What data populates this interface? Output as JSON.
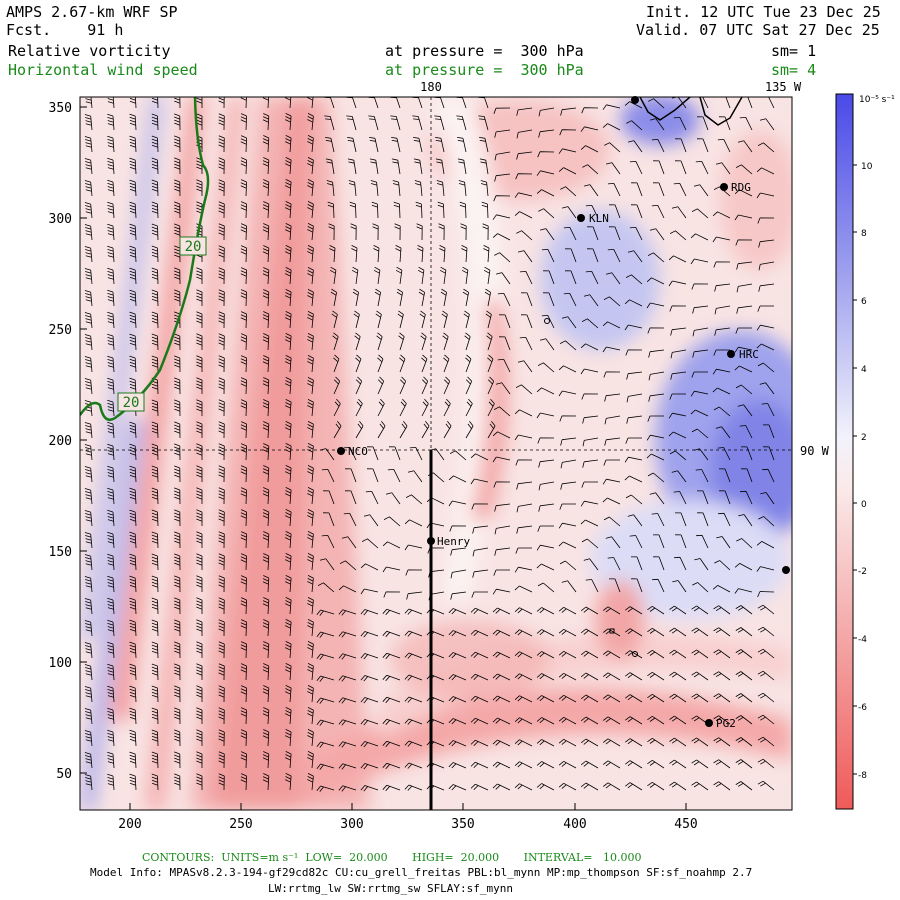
{
  "header": {
    "model": "AMPS 2.67-km WRF SP",
    "fcst": "Fcst.    91 h",
    "init": "Init. 12 UTC Tue 23 Dec 25",
    "valid": "Valid. 07 UTC Sat 27 Dec 25",
    "field1": "Relative vorticity",
    "field1_level": "at pressure =  300 hPa",
    "field1_sm": "sm= 1",
    "field2": "Horizontal wind speed",
    "field2_level": "at pressure =  300 hPa",
    "field2_sm": "sm= 4"
  },
  "colors": {
    "positive_max": "#4a4ae8",
    "negative_max": "#f05a5a",
    "contour": "#1a7a1a",
    "label_green": "#1a8a1a"
  },
  "map": {
    "x_ticks": [
      "200",
      "250",
      "300",
      "350",
      "400",
      "450"
    ],
    "y_ticks": [
      "350",
      "300",
      "250",
      "200",
      "150",
      "100",
      "50"
    ],
    "meridian_labels": [
      "180",
      "135 W",
      "90 W"
    ],
    "stations": [
      "NCO",
      "Henry",
      "KLN",
      "RDG",
      "HRC",
      "PG2"
    ],
    "contour_labels": [
      "20",
      "20"
    ]
  },
  "colorbar": {
    "unit": "10⁻⁵ s⁻¹",
    "ticks": [
      "10",
      "8",
      "6",
      "4",
      "2",
      "0",
      "-2",
      "-4",
      "-6",
      "-8"
    ]
  },
  "footer": {
    "contours": "CONTOURS:  UNITS=m s⁻¹  LOW=  20.000       HIGH=  20.000       INTERVAL=   10.000",
    "model_info": "Model Info: MPASv8.2.3-194-gf29cd82c CU:cu_grell_freitas PBL:bl_mynn MP:mp_thompson SF:sf_noahmp 2.7",
    "model_info2": "LW:rrtmg_lw SW:rrtmg_sw SFLAY:sf_mynn"
  }
}
